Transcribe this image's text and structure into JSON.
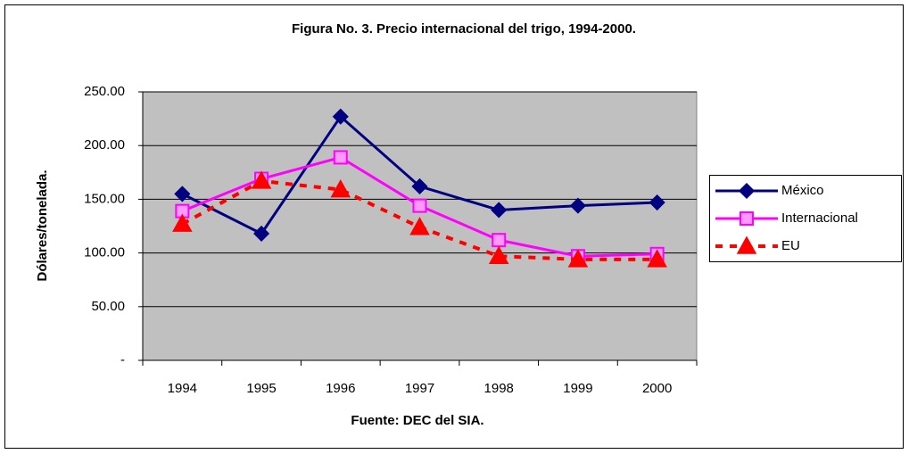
{
  "chart_data": {
    "type": "line",
    "title": "Figura No. 3. Precio internacional del trigo, 1994-2000.",
    "x_label": "Fuente: DEC del SIA.",
    "y_label": "Dólares/tonelada.",
    "categories": [
      "1994",
      "1995",
      "1996",
      "1997",
      "1998",
      "1999",
      "2000"
    ],
    "series": [
      {
        "name": "México",
        "color": "#000080",
        "marker": "diamond",
        "dash": false,
        "values": [
          155,
          118,
          227,
          162,
          140,
          144,
          147
        ]
      },
      {
        "name": "Internacional",
        "color": "#ff00ff",
        "marker": "square",
        "dash": false,
        "values": [
          139,
          169,
          189,
          144,
          112,
          97,
          99
        ]
      },
      {
        "name": "EU",
        "color": "#ff0000",
        "marker": "triangle",
        "dash": true,
        "values": [
          127,
          167,
          159,
          124,
          97,
          94,
          94
        ]
      }
    ],
    "ylim": [
      0,
      250
    ],
    "yticks": [
      {
        "value": 0,
        "label": "-"
      },
      {
        "value": 50,
        "label": "50.00"
      },
      {
        "value": 100,
        "label": "100.00"
      },
      {
        "value": 150,
        "label": "150.00"
      },
      {
        "value": 200,
        "label": "200.00"
      },
      {
        "value": 250,
        "label": "250.00"
      }
    ],
    "grid": true,
    "plot_background": "#c0c0c0",
    "legend": "right"
  }
}
